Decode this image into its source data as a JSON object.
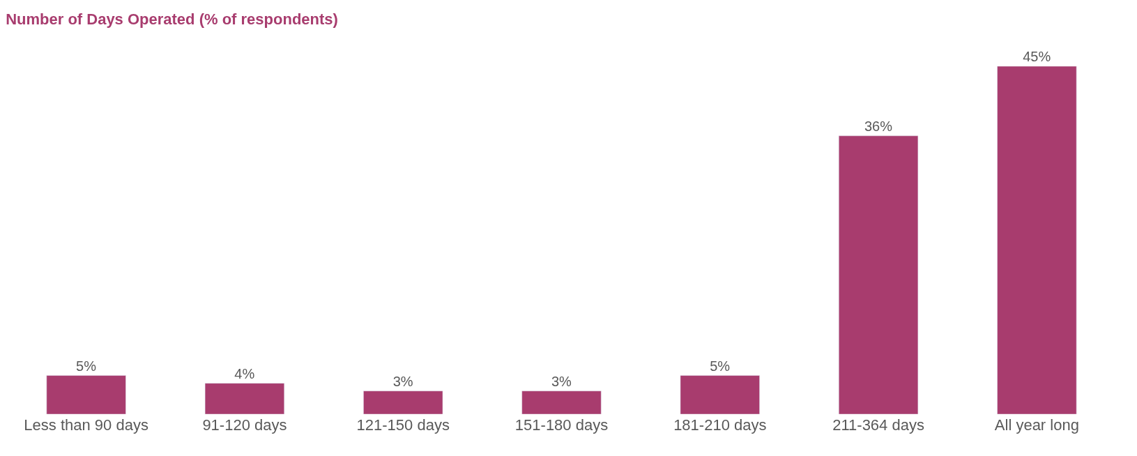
{
  "chart_data": {
    "type": "bar",
    "title": "Number of Days Operated (% of respondents)",
    "categories": [
      "Less than 90 days",
      "91-120 days",
      "121-150 days",
      "151-180 days",
      "181-210 days",
      "211-364 days",
      "All year long"
    ],
    "values": [
      5,
      4,
      3,
      3,
      5,
      36,
      45
    ],
    "value_labels": [
      "5%",
      "4%",
      "3%",
      "3%",
      "5%",
      "36%",
      "45%"
    ],
    "color": "#a83c6e",
    "ylim": [
      0,
      45
    ],
    "tick_labels": "x",
    "legend": false
  }
}
